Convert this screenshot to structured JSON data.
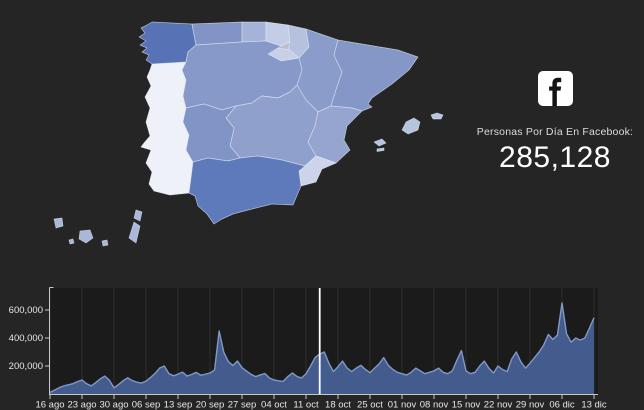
{
  "page": {
    "background": "#252525"
  },
  "kpi": {
    "icon": "facebook-icon",
    "label": "Personas Por Día En Facebook:",
    "value": "285,128"
  },
  "map": {
    "title": "spain-regions-choropleth",
    "border_color": "#c9d1e6",
    "portugal": {
      "name": "Portugal",
      "color": "#eef1f8"
    },
    "regions": [
      {
        "id": "galicia",
        "name": "Galicia",
        "color": "#5873b5"
      },
      {
        "id": "asturias",
        "name": "Asturias",
        "color": "#8294c6"
      },
      {
        "id": "cantabria",
        "name": "Cantabria",
        "color": "#a5b3d8"
      },
      {
        "id": "pais-vasco",
        "name": "País Vasco",
        "color": "#c4cde6"
      },
      {
        "id": "navarra",
        "name": "Navarra",
        "color": "#b5c1de"
      },
      {
        "id": "la-rioja",
        "name": "La Rioja",
        "color": "#c8d0e8"
      },
      {
        "id": "aragon",
        "name": "Aragón",
        "color": "#8a9cc9"
      },
      {
        "id": "cataluna",
        "name": "Cataluña",
        "color": "#8497c7"
      },
      {
        "id": "castilla-y-leon",
        "name": "Castilla y León",
        "color": "#8799c8"
      },
      {
        "id": "madrid",
        "name": "Madrid",
        "color": "#8fa0cc"
      },
      {
        "id": "castilla-la-mancha",
        "name": "Castilla-La Mancha",
        "color": "#90a0cc"
      },
      {
        "id": "extremadura",
        "name": "Extremadura",
        "color": "#8094c5"
      },
      {
        "id": "valencia",
        "name": "C. Valenciana",
        "color": "#95a5cf"
      },
      {
        "id": "murcia",
        "name": "Murcia",
        "color": "#cdd4ea"
      },
      {
        "id": "andalucia",
        "name": "Andalucía",
        "color": "#5f7aba"
      },
      {
        "id": "baleares",
        "name": "Islas Baleares",
        "color": "#b7c4df"
      },
      {
        "id": "canarias",
        "name": "Islas Canarias",
        "color": "#a9b8da"
      }
    ]
  },
  "chart_data": {
    "type": "area",
    "title": "",
    "xlabel": "",
    "ylabel": "",
    "x_tick_labels": [
      "16 ago",
      "23 ago",
      "30 ago",
      "06 sep",
      "13 sep",
      "20 sep",
      "27 sep",
      "04 oct",
      "11 oct",
      "18 oct",
      "25 oct",
      "01 nov",
      "08 nov",
      "15 nov",
      "22 nov",
      "29 nov",
      "06 dic",
      "13 dic"
    ],
    "x_tick_spacing_days": 7,
    "y_tick_labels": [
      "200,000",
      "400,000",
      "600,000"
    ],
    "y_tick_values": [
      200000,
      400000,
      600000
    ],
    "ylim": [
      0,
      760000
    ],
    "grid": "vertical",
    "series": [
      {
        "name": "personas-por-dia-en-facebook",
        "values_daily": [
          12000,
          28000,
          45000,
          58000,
          66000,
          74000,
          88000,
          100000,
          74000,
          58000,
          82000,
          108000,
          128000,
          98000,
          44000,
          68000,
          95000,
          115000,
          96000,
          84000,
          78000,
          92000,
          118000,
          148000,
          186000,
          200000,
          146000,
          130000,
          142000,
          156000,
          128000,
          140000,
          154000,
          134000,
          142000,
          150000,
          172000,
          450000,
          300000,
          232000,
          204000,
          236000,
          188000,
          164000,
          140000,
          124000,
          136000,
          146000,
          114000,
          100000,
          94000,
          90000,
          124000,
          150000,
          126000,
          114000,
          144000,
          200000,
          260000,
          285128,
          300000,
          220000,
          160000,
          195000,
          235000,
          185000,
          160000,
          185000,
          205000,
          175000,
          152000,
          185000,
          215000,
          260000,
          205000,
          175000,
          155000,
          145000,
          135000,
          155000,
          185000,
          165000,
          145000,
          155000,
          165000,
          185000,
          155000,
          145000,
          165000,
          240000,
          310000,
          165000,
          145000,
          155000,
          200000,
          235000,
          185000,
          150000,
          200000,
          175000,
          160000,
          250000,
          300000,
          230000,
          185000,
          220000,
          260000,
          300000,
          350000,
          425000,
          390000,
          420000,
          650000,
          430000,
          370000,
          400000,
          385000,
          400000,
          470000,
          545000
        ]
      }
    ],
    "cursor": {
      "day_index": 59,
      "value_at_cursor": 285128
    },
    "colors": {
      "plot_bg": "#1b1b1b",
      "grid": "#2e2e2e",
      "axis": "#c8c8c8",
      "labels": "#e6e6e6",
      "area_fill": "#455e92",
      "area_line": "#8298c6",
      "cursor": "#ffffff"
    }
  }
}
